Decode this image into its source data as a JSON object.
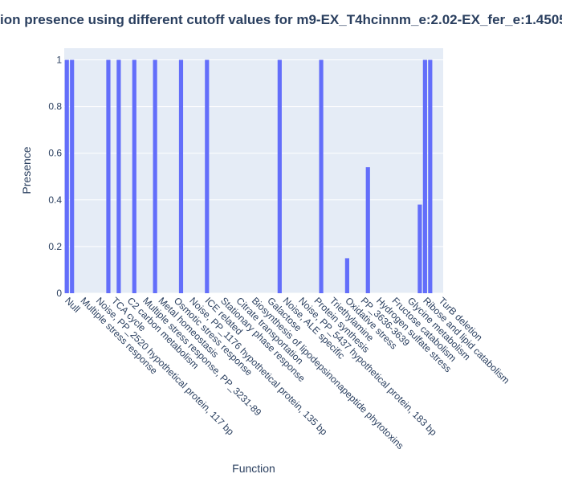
{
  "chart_data": {
    "type": "bar",
    "title": "ion presence using different cutoff values for m9-EX_T4hcinnm_e:2.02-EX_fer_e:1.4505",
    "x_label": "Function",
    "y_label": "Presence",
    "color": "#636efa",
    "grid": true,
    "ylim": [
      0,
      1.05
    ],
    "yticks": [
      0,
      0.2,
      0.4,
      0.6,
      0.8,
      1
    ],
    "categories": [
      "Null",
      null,
      null,
      "Multiple stress response",
      null,
      null,
      "Noise, PP_2520 hypothetical protein, 117 bp",
      null,
      null,
      "TCA cycle",
      null,
      null,
      "C2 carbon metabolism",
      null,
      null,
      "Multiple stress response, PP_3231-89",
      null,
      null,
      "Metal homeostasis",
      null,
      null,
      "Osmotic stress response",
      null,
      null,
      "Noise, PP_1176 hypothetical protein, 135 bp",
      null,
      null,
      "ICE related",
      null,
      null,
      "Stationary phase response",
      null,
      null,
      "Citrate transportation",
      null,
      null,
      "Biosynthesis of lipodepsinonapeptide phytotoxins",
      null,
      null,
      "Galactose",
      null,
      null,
      "Noise, ALE specific",
      null,
      null,
      "Noise, PP_5437 hypothetical protein, 183 bp",
      null,
      null,
      "Protein synthesis",
      null,
      null,
      "Triethylamine",
      null,
      null,
      "Oxidative stress",
      null,
      null,
      "PP_3636-3639",
      null,
      null,
      "Hydrogen sulfate stress",
      null,
      null,
      "Fructose catabolism",
      null,
      null,
      "Glycine metabolism",
      null,
      null,
      "Ribose and lipid catabolism",
      null,
      null,
      "TurB deletion"
    ],
    "values": [
      1,
      1,
      0,
      0,
      0,
      0,
      0,
      0,
      1,
      0,
      1,
      0,
      0,
      1,
      0,
      0,
      0,
      1,
      0,
      0,
      0,
      0,
      1,
      0,
      0,
      0,
      0,
      1,
      0,
      0,
      0,
      0,
      0,
      0,
      0,
      0,
      0,
      0,
      0,
      0,
      0,
      1,
      0,
      0,
      0,
      0,
      0,
      0,
      0,
      1,
      0,
      0,
      0,
      0,
      0.15,
      0,
      0,
      0,
      0.54,
      0,
      0,
      0,
      0,
      0,
      0,
      0,
      0,
      0,
      0.38,
      1,
      1,
      0,
      0
    ]
  }
}
